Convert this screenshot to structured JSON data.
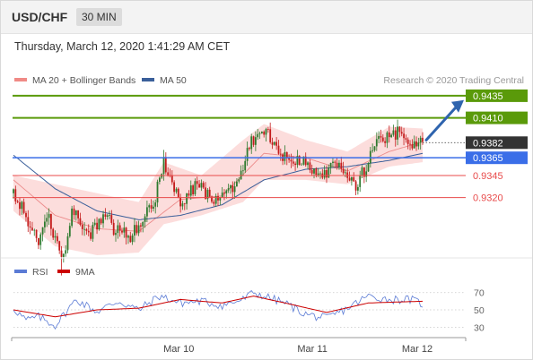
{
  "header": {
    "symbol": "USD/CHF",
    "timeframe": "30 MIN"
  },
  "timestamp": "Thursday, March 12, 2020 1:41:29 AM CET",
  "colors": {
    "resistance": "#5a9a0a",
    "pivot": "#3a6ee8",
    "support": "#e84a4a",
    "current": "#333333",
    "bollinger_band": "#fbd5d3",
    "ma20": "#ec8b8b",
    "ma50": "#3a5f9a",
    "candle_up": "#2f7a2f",
    "candle_down": "#c41c1c",
    "rsi": "#5b7bd5",
    "rsi_ma": "#cc0000",
    "arrow": "#2f64ae"
  },
  "chart_data": [
    {
      "type": "candlestick",
      "title": "",
      "legend": [
        {
          "name": "MA 20 + Bollinger Bands",
          "color": "#f08a86"
        },
        {
          "name": "MA 50",
          "color": "#3a5f9a"
        }
      ],
      "credit": "Research © 2020 Trading Central",
      "x_ticks": [
        "Mar 10",
        "Mar 11",
        "Mar 12"
      ],
      "ylim": [
        0.9255,
        0.9445
      ],
      "levels": [
        {
          "label": "0.9435",
          "value": 0.9435,
          "kind": "resistance"
        },
        {
          "label": "0.9410",
          "value": 0.941,
          "kind": "resistance"
        },
        {
          "label": "0.9382",
          "value": 0.9382,
          "kind": "current"
        },
        {
          "label": "0.9365",
          "value": 0.9365,
          "kind": "pivot"
        },
        {
          "label": "0.9345",
          "value": 0.9345,
          "kind": "support"
        },
        {
          "label": "0.9320",
          "value": 0.932,
          "kind": "support"
        }
      ],
      "trajectory_target": 0.9427,
      "close_anchors": [
        [
          0,
          0.9325
        ],
        [
          4,
          0.931
        ],
        [
          8,
          0.929
        ],
        [
          12,
          0.927
        ],
        [
          16,
          0.9305
        ],
        [
          20,
          0.9275
        ],
        [
          24,
          0.925
        ],
        [
          28,
          0.931
        ],
        [
          32,
          0.9295
        ],
        [
          36,
          0.9278
        ],
        [
          40,
          0.929
        ],
        [
          44,
          0.9305
        ],
        [
          48,
          0.9285
        ],
        [
          52,
          0.928
        ],
        [
          56,
          0.9275
        ],
        [
          60,
          0.929
        ],
        [
          64,
          0.931
        ],
        [
          68,
          0.932
        ],
        [
          72,
          0.936
        ],
        [
          76,
          0.934
        ],
        [
          80,
          0.9315
        ],
        [
          84,
          0.9325
        ],
        [
          88,
          0.9335
        ],
        [
          92,
          0.9325
        ],
        [
          96,
          0.931
        ],
        [
          100,
          0.9325
        ],
        [
          104,
          0.933
        ],
        [
          108,
          0.934
        ],
        [
          112,
          0.9375
        ],
        [
          116,
          0.939
        ],
        [
          120,
          0.9395
        ],
        [
          124,
          0.9385
        ],
        [
          128,
          0.9372
        ],
        [
          132,
          0.936
        ],
        [
          136,
          0.9365
        ],
        [
          140,
          0.936
        ],
        [
          144,
          0.9345
        ],
        [
          148,
          0.934
        ],
        [
          152,
          0.9355
        ],
        [
          156,
          0.936
        ],
        [
          160,
          0.9345
        ],
        [
          164,
          0.9335
        ],
        [
          168,
          0.935
        ],
        [
          172,
          0.9375
        ],
        [
          176,
          0.939
        ],
        [
          180,
          0.9385
        ],
        [
          184,
          0.9393
        ],
        [
          188,
          0.9387
        ],
        [
          192,
          0.938
        ],
        [
          196,
          0.9383
        ]
      ],
      "moving_averages": [
        {
          "name": "MA 20",
          "anchors": [
            [
              0,
              0.934
            ],
            [
              20,
              0.93
            ],
            [
              40,
              0.9285
            ],
            [
              60,
              0.9282
            ],
            [
              80,
              0.9318
            ],
            [
              100,
              0.9322
            ],
            [
              120,
              0.937
            ],
            [
              140,
              0.9365
            ],
            [
              160,
              0.935
            ],
            [
              180,
              0.9372
            ],
            [
              196,
              0.9383
            ]
          ]
        },
        {
          "name": "MA 50",
          "anchors": [
            [
              0,
              0.9368
            ],
            [
              20,
              0.933
            ],
            [
              40,
              0.9305
            ],
            [
              60,
              0.9295
            ],
            [
              80,
              0.93
            ],
            [
              100,
              0.9312
            ],
            [
              120,
              0.934
            ],
            [
              140,
              0.9352
            ],
            [
              160,
              0.9355
            ],
            [
              180,
              0.9362
            ],
            [
              196,
              0.937
            ]
          ]
        }
      ],
      "bollinger": {
        "upper_anchors": [
          [
            0,
            0.9345
          ],
          [
            20,
            0.9335
          ],
          [
            40,
            0.9325
          ],
          [
            60,
            0.9315
          ],
          [
            72,
            0.936
          ],
          [
            90,
            0.9345
          ],
          [
            110,
            0.9385
          ],
          [
            120,
            0.9403
          ],
          [
            140,
            0.9385
          ],
          [
            160,
            0.9372
          ],
          [
            180,
            0.94
          ],
          [
            196,
            0.9398
          ]
        ],
        "lower_anchors": [
          [
            0,
            0.9305
          ],
          [
            20,
            0.9265
          ],
          [
            40,
            0.9255
          ],
          [
            60,
            0.9258
          ],
          [
            72,
            0.929
          ],
          [
            90,
            0.93
          ],
          [
            110,
            0.9315
          ],
          [
            120,
            0.934
          ],
          [
            140,
            0.934
          ],
          [
            160,
            0.9335
          ],
          [
            180,
            0.9355
          ],
          [
            196,
            0.936
          ]
        ]
      }
    },
    {
      "type": "line",
      "title": "",
      "legend": [
        {
          "name": "RSI",
          "color": "#5b7bd5"
        },
        {
          "name": "9MA",
          "color": "#cc0000"
        }
      ],
      "ylim": [
        20,
        78
      ],
      "y_ticks": [
        70,
        50,
        30
      ],
      "series": [
        {
          "name": "RSI",
          "anchors": [
            [
              0,
              52
            ],
            [
              6,
              38
            ],
            [
              12,
              42
            ],
            [
              20,
              32
            ],
            [
              30,
              62
            ],
            [
              40,
              48
            ],
            [
              50,
              60
            ],
            [
              60,
              50
            ],
            [
              70,
              66
            ],
            [
              80,
              58
            ],
            [
              90,
              60
            ],
            [
              100,
              55
            ],
            [
              110,
              62
            ],
            [
              115,
              70
            ],
            [
              120,
              66
            ],
            [
              130,
              58
            ],
            [
              140,
              45
            ],
            [
              150,
              40
            ],
            [
              160,
              52
            ],
            [
              170,
              66
            ],
            [
              180,
              62
            ],
            [
              190,
              62
            ],
            [
              196,
              57
            ]
          ]
        },
        {
          "name": "9MA",
          "anchors": [
            [
              0,
              50
            ],
            [
              20,
              42
            ],
            [
              40,
              50
            ],
            [
              60,
              52
            ],
            [
              80,
              62
            ],
            [
              100,
              58
            ],
            [
              115,
              66
            ],
            [
              130,
              58
            ],
            [
              150,
              47
            ],
            [
              170,
              58
            ],
            [
              196,
              60
            ]
          ]
        }
      ]
    }
  ]
}
